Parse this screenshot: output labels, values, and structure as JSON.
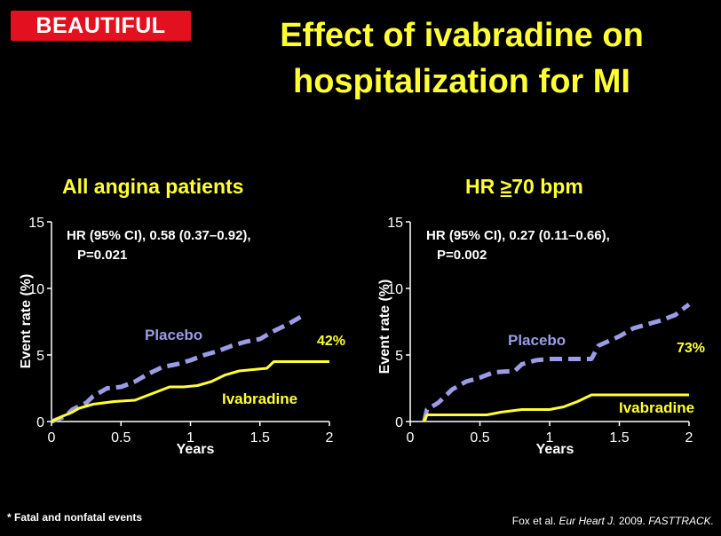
{
  "logo": {
    "text": "BEAUTIFUL"
  },
  "title_lines": [
    "Effect of ivabradine on",
    "hospitalization for MI"
  ],
  "footnote": "* Fatal and nonfatal events",
  "citation": {
    "author": "Fox et al.",
    "journal": "Eur Heart J.",
    "year": "2009.",
    "tag": "FASTTRACK."
  },
  "colors": {
    "placebo": "#9b9be6",
    "ivabradine": "#ffff33",
    "title": "#ffff33",
    "axis": "#ffffff",
    "brand": "#e3101f"
  },
  "chart_data": [
    {
      "type": "line",
      "title": "All angina patients",
      "xlabel": "Years",
      "ylabel": "Event rate (%)",
      "xlim": [
        0,
        2
      ],
      "ylim": [
        0,
        15
      ],
      "xticks": [
        "0",
        "0.5",
        "1",
        "1.5",
        "2"
      ],
      "yticks": [
        "0",
        "5",
        "10",
        "15"
      ],
      "annotation_lines": [
        "HR (95% CI), 0.58 (0.37–0.92),",
        "P=0.021"
      ],
      "reduction_label": "42%",
      "series": [
        {
          "name": "Placebo",
          "style": "dashed",
          "x": [
            0,
            0.1,
            0.15,
            0.25,
            0.3,
            0.4,
            0.5,
            0.6,
            0.7,
            0.8,
            0.9,
            1.0,
            1.1,
            1.2,
            1.3,
            1.4,
            1.5,
            1.6,
            1.7,
            1.8
          ],
          "y": [
            0,
            0.4,
            0.9,
            1.4,
            1.9,
            2.5,
            2.6,
            3.0,
            3.6,
            4.1,
            4.3,
            4.6,
            5.0,
            5.3,
            5.7,
            6.0,
            6.2,
            6.8,
            7.3,
            7.9
          ]
        },
        {
          "name": "Ivabradine",
          "style": "solid",
          "x": [
            0,
            0.08,
            0.15,
            0.2,
            0.3,
            0.45,
            0.6,
            0.75,
            0.85,
            0.95,
            1.05,
            1.15,
            1.25,
            1.35,
            1.45,
            1.55,
            1.6,
            2.0
          ],
          "y": [
            0,
            0.4,
            0.7,
            1.0,
            1.3,
            1.5,
            1.6,
            2.2,
            2.6,
            2.6,
            2.7,
            3.0,
            3.5,
            3.8,
            3.9,
            4.0,
            4.5,
            4.5
          ]
        }
      ]
    },
    {
      "type": "line",
      "title": "HR ≥70 bpm",
      "title_parts": [
        "HR ",
        "≥",
        "70 bpm"
      ],
      "xlabel": "Years",
      "ylabel": "Event rate (%)",
      "xlim": [
        0,
        2
      ],
      "ylim": [
        0,
        15
      ],
      "xticks": [
        "0",
        "0.5",
        "1",
        "1.5",
        "2"
      ],
      "yticks": [
        "0",
        "5",
        "10",
        "15"
      ],
      "annotation_lines": [
        "HR (95% CI), 0.27 (0.11–0.66),",
        "P=0.002"
      ],
      "reduction_label": "73%",
      "series": [
        {
          "name": "Placebo",
          "style": "dashed",
          "x": [
            0.1,
            0.12,
            0.2,
            0.3,
            0.4,
            0.5,
            0.6,
            0.75,
            0.8,
            0.9,
            1.0,
            1.1,
            1.2,
            1.3,
            1.35,
            1.5,
            1.6,
            1.7,
            1.8,
            1.9,
            2.0
          ],
          "y": [
            0,
            0.9,
            1.4,
            2.4,
            3.0,
            3.3,
            3.7,
            3.8,
            4.3,
            4.6,
            4.7,
            4.7,
            4.7,
            4.7,
            5.7,
            6.4,
            7.0,
            7.3,
            7.6,
            8.0,
            8.8
          ]
        },
        {
          "name": "Ivabradine",
          "style": "solid",
          "x": [
            0.1,
            0.12,
            0.25,
            0.55,
            0.65,
            0.8,
            1.0,
            1.1,
            1.2,
            1.3,
            2.0
          ],
          "y": [
            0,
            0.5,
            0.5,
            0.5,
            0.7,
            0.9,
            0.9,
            1.1,
            1.5,
            2.0,
            2.0
          ]
        }
      ]
    }
  ]
}
